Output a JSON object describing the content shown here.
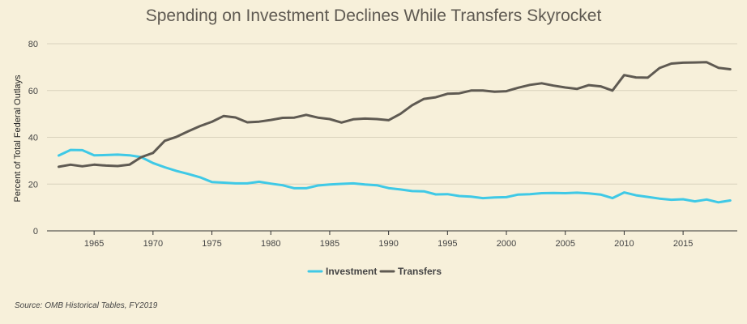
{
  "chart_data": {
    "type": "line",
    "title": "Spending on Investment Declines While Transfers Skyrocket",
    "ylabel": "Percent of Total Federal Outlays",
    "xlabel": "",
    "xlim": [
      1961,
      2019.6
    ],
    "ylim": [
      0,
      80
    ],
    "xticks": [
      1965,
      1970,
      1975,
      1980,
      1985,
      1990,
      1995,
      2000,
      2005,
      2010,
      2015
    ],
    "yticks": [
      0,
      20,
      40,
      60,
      80
    ],
    "grid": "horizontal",
    "legend_position": "bottom-center",
    "x": [
      1962,
      1963,
      1964,
      1965,
      1966,
      1967,
      1968,
      1969,
      1970,
      1971,
      1972,
      1973,
      1974,
      1975,
      1976,
      1977,
      1978,
      1979,
      1980,
      1981,
      1982,
      1983,
      1984,
      1985,
      1986,
      1987,
      1988,
      1989,
      1990,
      1991,
      1992,
      1993,
      1994,
      1995,
      1996,
      1997,
      1998,
      1999,
      2000,
      2001,
      2002,
      2003,
      2004,
      2005,
      2006,
      2007,
      2008,
      2009,
      2010,
      2011,
      2012,
      2013,
      2014,
      2015,
      2016,
      2017,
      2018,
      2019
    ],
    "series": [
      {
        "name": "Investment",
        "color": "#3fc9e6",
        "values": [
          32.2,
          34.6,
          34.5,
          32.3,
          32.4,
          32.6,
          32.3,
          31.5,
          29.0,
          27.2,
          25.6,
          24.3,
          22.9,
          20.9,
          20.6,
          20.3,
          20.3,
          21.0,
          20.2,
          19.5,
          18.2,
          18.2,
          19.4,
          19.8,
          20.1,
          20.3,
          19.8,
          19.5,
          18.3,
          17.7,
          17.0,
          16.9,
          15.6,
          15.7,
          14.9,
          14.6,
          14.0,
          14.3,
          14.4,
          15.5,
          15.7,
          16.1,
          16.2,
          16.1,
          16.3,
          16.0,
          15.5,
          14.0,
          16.4,
          15.2,
          14.5,
          13.8,
          13.3,
          13.5,
          12.6,
          13.4,
          12.2,
          13.0
        ]
      },
      {
        "name": "Transfers",
        "color": "#5f5a52",
        "values": [
          27.4,
          28.3,
          27.6,
          28.3,
          27.9,
          27.7,
          28.3,
          31.5,
          33.3,
          38.5,
          40.2,
          42.6,
          44.8,
          46.6,
          49.1,
          48.5,
          46.4,
          46.7,
          47.4,
          48.3,
          48.4,
          49.6,
          48.4,
          47.8,
          46.3,
          47.7,
          48.0,
          47.8,
          47.3,
          50.0,
          53.7,
          56.4,
          57.1,
          58.6,
          58.8,
          60.0,
          60.0,
          59.5,
          59.7,
          61.2,
          62.4,
          63.1,
          62.1,
          61.3,
          60.7,
          62.3,
          61.8,
          60.0,
          66.6,
          65.6,
          65.5,
          69.6,
          71.5,
          71.9,
          72.0,
          72.1,
          69.7,
          69.1
        ]
      }
    ]
  },
  "source": "Source: OMB Historical Tables, FY2019",
  "colors": {
    "background": "#f7f0da",
    "grid": "#d9d2bd",
    "axis": "#333333"
  }
}
